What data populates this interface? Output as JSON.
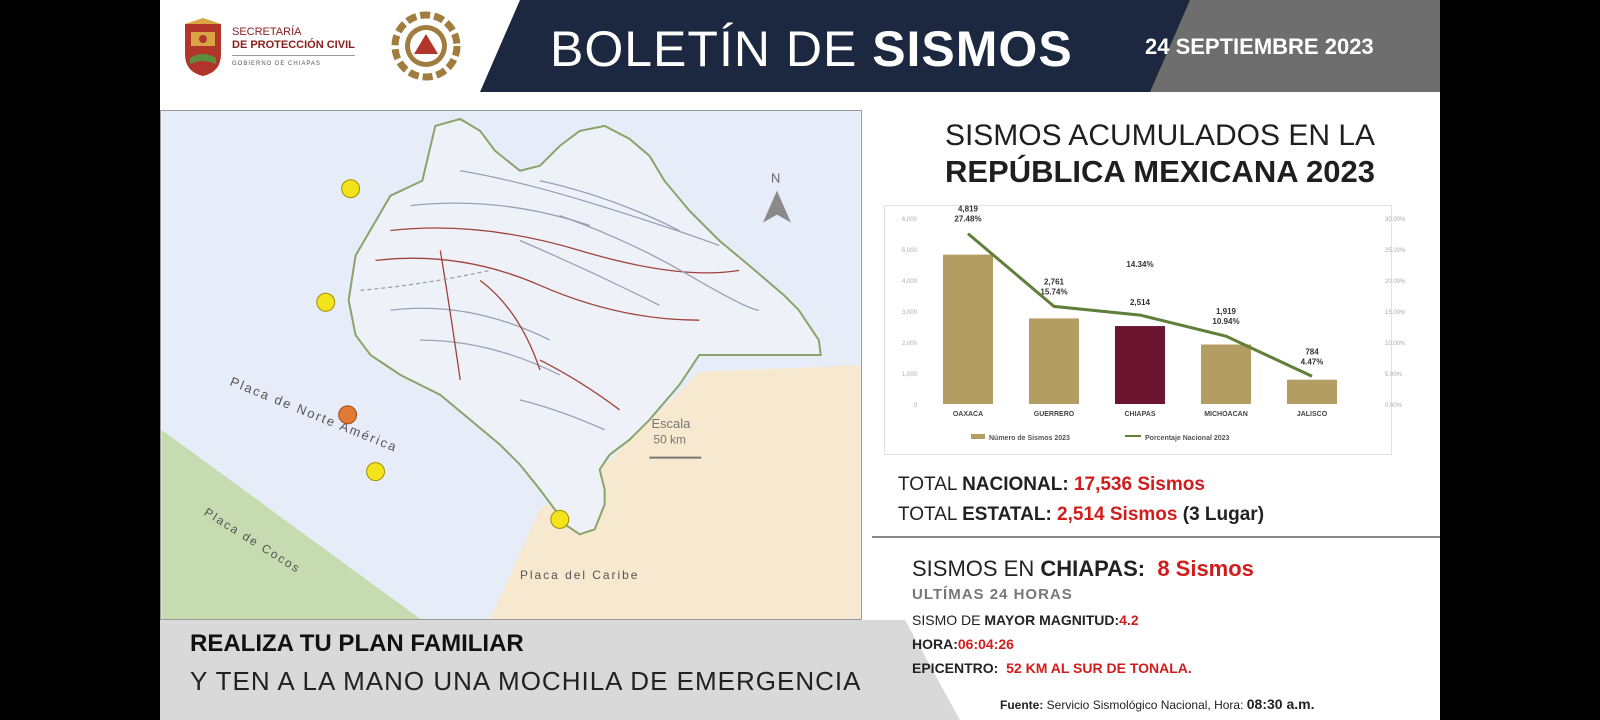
{
  "header": {
    "title_light": "BOLETÍN DE ",
    "title_bold": "SISMOS",
    "date": "24 SEPTIEMBRE  2023",
    "gov_line1": "SECRETARÍA",
    "gov_line2": "DE PROTECCIÓN CIVIL",
    "gov_line3": "GOBIERNO DE CHIAPAS",
    "colors": {
      "navy": "#1b2840",
      "gray": "#6e6e6e",
      "gov_red": "#8a1b1b",
      "pc_gold": "#a07d3f"
    }
  },
  "map": {
    "plate_north_america": "Placa de Norte América",
    "plate_cocos": "Placa de Cocos",
    "plate_caribe": "Placa del Caribe",
    "scale_label": "Escala",
    "scale_value": "50 km",
    "north_label": "N",
    "colors": {
      "sea": "#e6edf8",
      "caribe": "#f7e9d0",
      "cocos": "#c7dbb1",
      "border": "#8aa36b",
      "marker_yellow": "#f2e31a",
      "marker_orange": "#e07a35"
    }
  },
  "accumulated": {
    "title_line1": "SISMOS ACUMULADOS EN LA",
    "title_line2": "REPÚBLICA MEXICANA 2023"
  },
  "chart_data": {
    "type": "bar",
    "categories": [
      "OAXACA",
      "GUERRERO",
      "CHIAPAS",
      "MICHOACAN",
      "JALISCO"
    ],
    "series": [
      {
        "name": "Número de Sismos 2023",
        "values": [
          4819,
          2761,
          2514,
          1919,
          784
        ],
        "color": "#b39d62",
        "highlight_color": "#6b1530"
      },
      {
        "name": "Porcentaje Nacional 2023",
        "type": "line",
        "values": [
          27.48,
          15.74,
          14.34,
          10.94,
          4.47
        ],
        "color": "#5f7f3a"
      }
    ],
    "value_labels": [
      "4,819",
      "2,761",
      "2,514",
      "1,919",
      "784"
    ],
    "percent_labels": [
      "27.48%",
      "15.74%",
      "14.34%",
      "10.94%",
      "4.47%"
    ],
    "left_ticks": [
      "0",
      "1,000",
      "2,000",
      "3,000",
      "4,000",
      "5,000",
      "6,000"
    ],
    "right_ticks": [
      "0.00%",
      "5.00%",
      "10.00%",
      "15.00%",
      "20.00%",
      "25.00%",
      "30.00%"
    ],
    "ylim": [
      0,
      6000
    ],
    "y2lim": [
      0,
      30
    ],
    "legend_position": "bottom",
    "highlight_index": 2
  },
  "totals": {
    "national_label": "TOTAL ",
    "national_bold": "NACIONAL: ",
    "national_value": "17,536 Sismos",
    "state_label": "TOTAL ",
    "state_bold": "ESTATAL: ",
    "state_value": "2,514 Sismos",
    "state_rank": " (3 Lugar)"
  },
  "chiapas": {
    "title": "SISMOS EN ",
    "title_bold": "CHIAPAS:",
    "count": "8 Sismos",
    "subtitle": "ULTÍMAS 24 HORAS",
    "mag_label_a": "SISMO DE ",
    "mag_label_b": "MAYOR MAGNITUD:",
    "mag_value": "4.2",
    "time_label": "HORA:",
    "time_value": "06:04:26",
    "epi_label": "EPICENTRO:",
    "epi_value": "52 KM AL SUR DE TONALA."
  },
  "footer": {
    "source_label": "Fuente:",
    "source_text": " Servicio Sismológico Nacional, Hora: ",
    "source_time": "08:30 a.m.",
    "plan_line1": "REALIZA TU PLAN FAMILIAR",
    "plan_line2": "Y TEN A LA MANO UNA MOCHILA DE EMERGENCIA"
  }
}
